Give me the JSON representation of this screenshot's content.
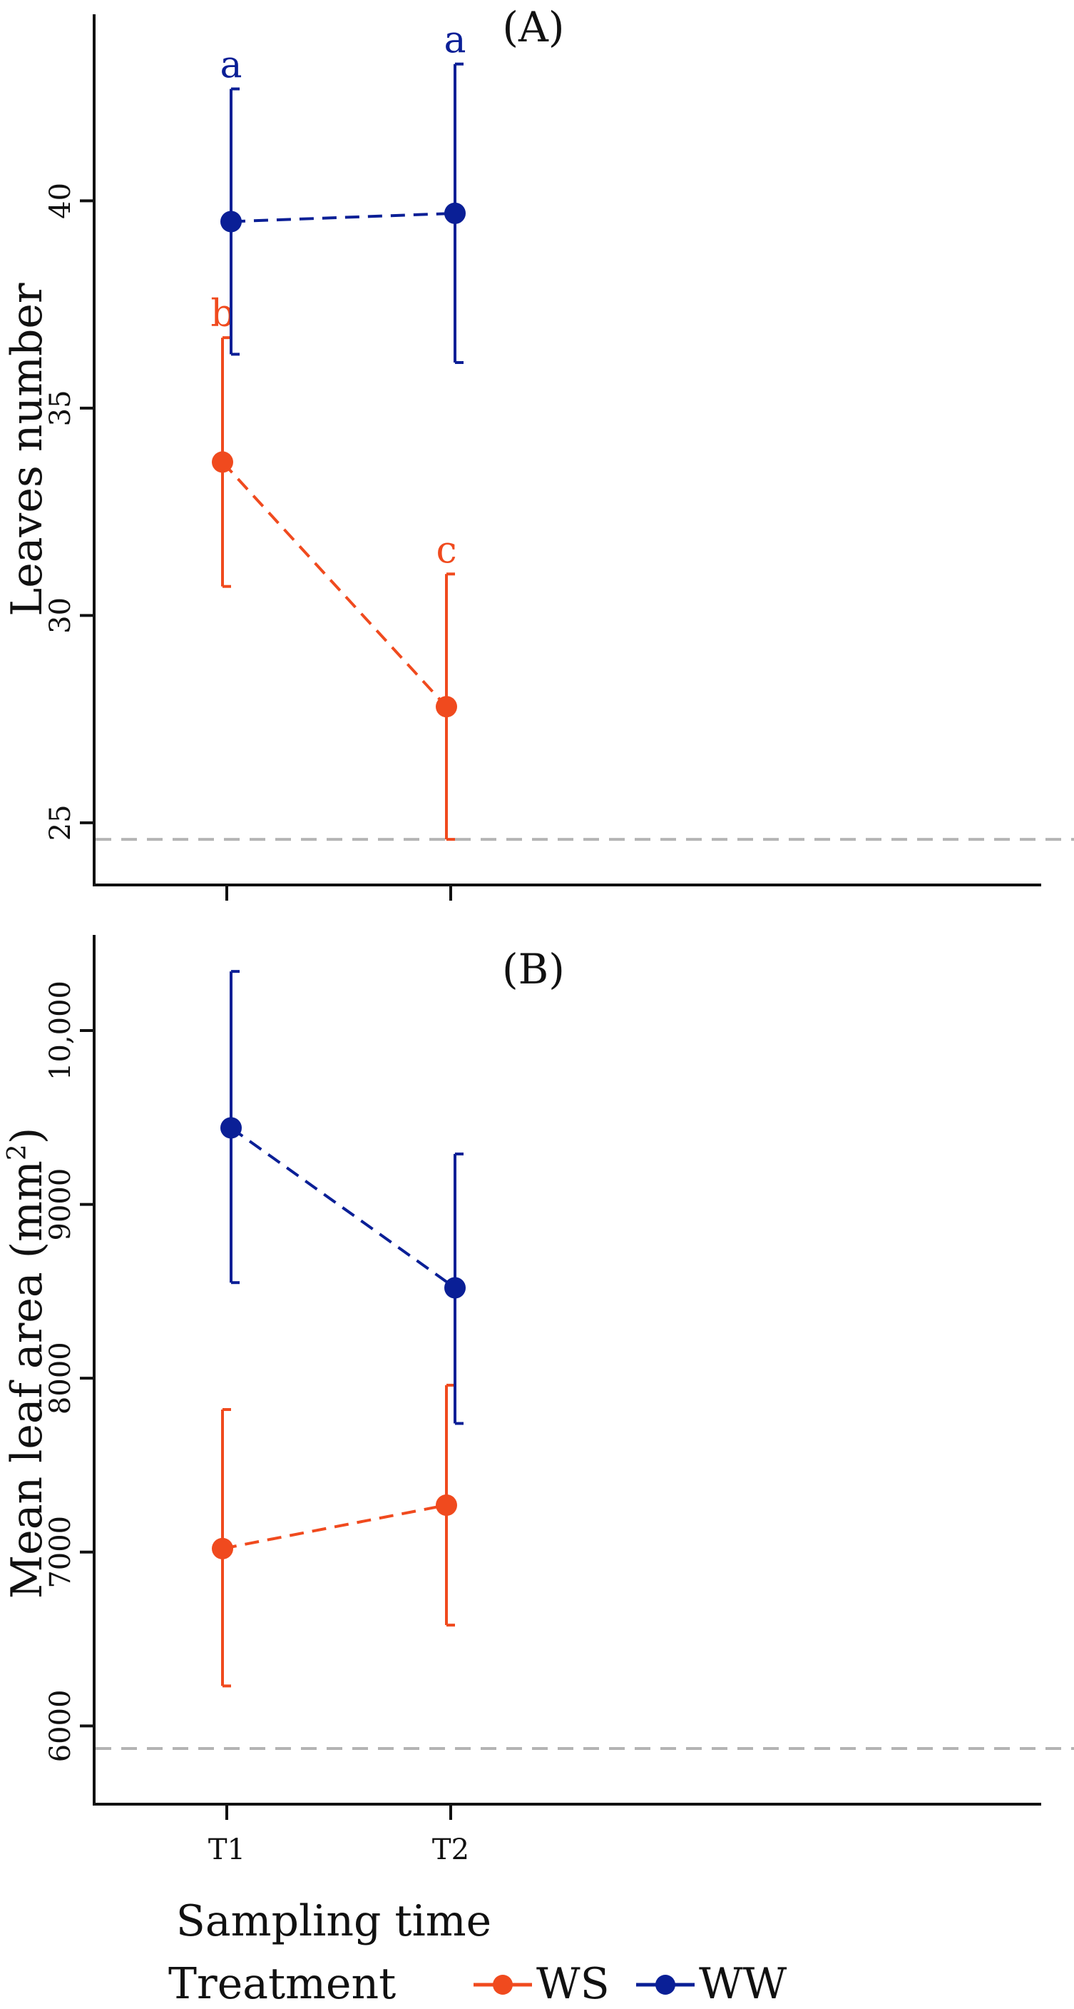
{
  "colors": {
    "WS": "#f04a1e",
    "WW": "#0a1f96",
    "reference": "#b4b4b4",
    "axis": "#111111"
  },
  "chart_data": [
    {
      "panel_label": "(A)",
      "type": "line",
      "categories": [
        "T1",
        "T2"
      ],
      "ylabel": "Leaves number",
      "ylim": [
        23.5,
        44.5
      ],
      "yticks": [
        25,
        30,
        35,
        40
      ],
      "ytick_labels": [
        "25",
        "30",
        "35",
        "40"
      ],
      "reference_line": 24.6,
      "series": [
        {
          "name": "WS",
          "values": [
            33.7,
            27.8
          ],
          "err_low": [
            30.7,
            24.6
          ],
          "err_high": [
            36.7,
            31.0
          ],
          "letters": [
            "b",
            "c"
          ]
        },
        {
          "name": "WW",
          "values": [
            39.5,
            39.7
          ],
          "err_low": [
            36.3,
            36.1
          ],
          "err_high": [
            42.7,
            43.3
          ],
          "letters": [
            "a",
            "a"
          ]
        }
      ]
    },
    {
      "panel_label": "(B)",
      "type": "line",
      "categories": [
        "T1",
        "T2"
      ],
      "ylabel_main": "Mean leaf area (mm",
      "ylabel_sup": "2",
      "ylabel_end": ")",
      "ylim": [
        5550,
        10550
      ],
      "yticks": [
        6000,
        7000,
        8000,
        9000,
        10000
      ],
      "ytick_labels": [
        "6000",
        "7000",
        "8000",
        "9000",
        "10,000"
      ],
      "reference_line": 5870,
      "series": [
        {
          "name": "WS",
          "values": [
            7020,
            7270
          ],
          "err_low": [
            6230,
            6580
          ],
          "err_high": [
            7820,
            7960
          ],
          "letters": [
            "",
            ""
          ]
        },
        {
          "name": "WW",
          "values": [
            9440,
            8520
          ],
          "err_low": [
            8550,
            7740
          ],
          "err_high": [
            10340,
            9290
          ],
          "letters": [
            "",
            ""
          ]
        }
      ]
    }
  ],
  "xlabel": "Sampling time",
  "legend": {
    "title": "Treatment",
    "items": [
      "WS",
      "WW"
    ]
  }
}
